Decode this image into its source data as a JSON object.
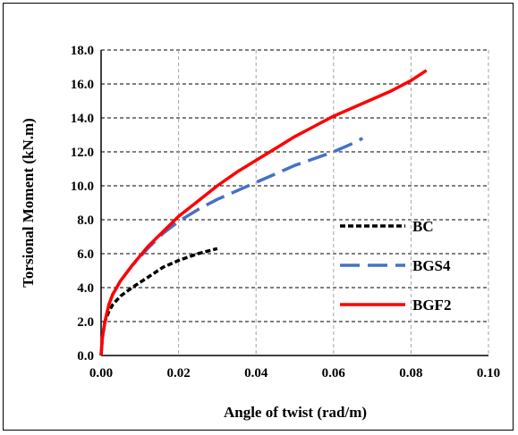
{
  "chart_data": {
    "type": "line",
    "title": "",
    "xlabel": "Angle of twist (rad/m)",
    "ylabel": "Torsional Moment (kN.m)",
    "xlim": [
      0,
      0.1
    ],
    "ylim": [
      0,
      18
    ],
    "x_ticks": [
      "0.00",
      "0.02",
      "0.04",
      "0.06",
      "0.08",
      "0.10"
    ],
    "y_ticks": [
      "0.0",
      "2.0",
      "4.0",
      "6.0",
      "8.0",
      "10.0",
      "12.0",
      "14.0",
      "16.0",
      "18.0"
    ],
    "grid": true,
    "legend_position": "right",
    "series": [
      {
        "name": "BC",
        "color": "#000000",
        "style": "dotted",
        "x": [
          0,
          0.0003,
          0.001,
          0.002,
          0.003,
          0.005,
          0.008,
          0.012,
          0.016,
          0.02,
          0.025,
          0.03
        ],
        "y": [
          0,
          1.0,
          2.0,
          2.6,
          3.0,
          3.5,
          4.0,
          4.6,
          5.2,
          5.6,
          6.0,
          6.3
        ]
      },
      {
        "name": "BGS4",
        "color": "#4472c4",
        "style": "dashed",
        "x": [
          0,
          0.0003,
          0.001,
          0.002,
          0.003,
          0.005,
          0.008,
          0.012,
          0.016,
          0.02,
          0.025,
          0.03,
          0.035,
          0.04,
          0.045,
          0.05,
          0.055,
          0.06,
          0.065,
          0.0675
        ],
        "y": [
          0,
          1.0,
          2.0,
          3.0,
          3.6,
          4.4,
          5.3,
          6.3,
          7.2,
          7.9,
          8.6,
          9.2,
          9.7,
          10.2,
          10.7,
          11.2,
          11.6,
          12.0,
          12.5,
          12.8
        ]
      },
      {
        "name": "BGF2",
        "color": "#ff0000",
        "style": "solid",
        "x": [
          0,
          0.0003,
          0.001,
          0.002,
          0.003,
          0.005,
          0.008,
          0.012,
          0.016,
          0.02,
          0.025,
          0.03,
          0.035,
          0.04,
          0.045,
          0.05,
          0.055,
          0.06,
          0.065,
          0.07,
          0.075,
          0.08,
          0.084
        ],
        "y": [
          0,
          1.0,
          2.0,
          3.0,
          3.6,
          4.4,
          5.3,
          6.4,
          7.3,
          8.2,
          9.1,
          10.0,
          10.8,
          11.5,
          12.2,
          12.9,
          13.5,
          14.1,
          14.6,
          15.1,
          15.6,
          16.2,
          16.8
        ]
      }
    ]
  }
}
